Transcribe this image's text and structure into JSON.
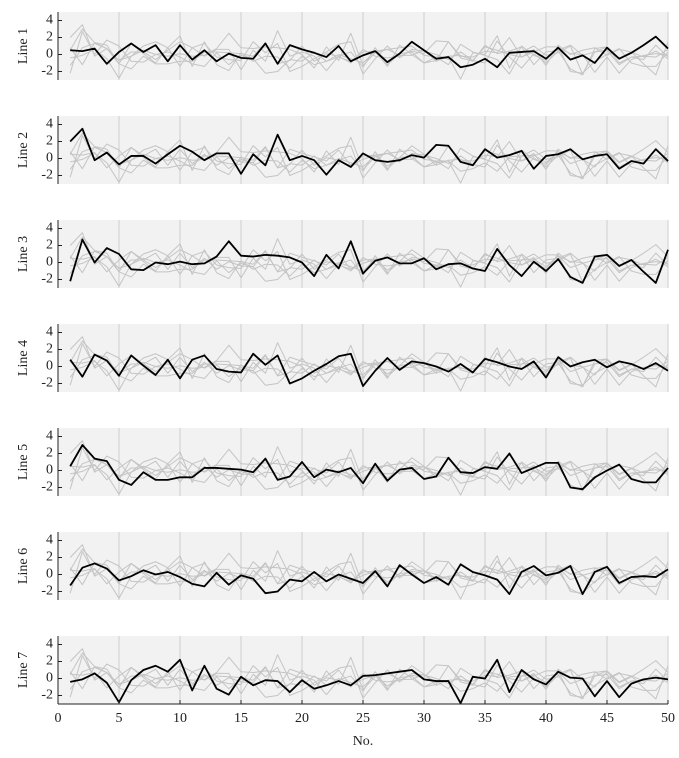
{
  "chart_data": {
    "type": "line",
    "layout": "small-multiples",
    "x_label": "No.",
    "x": [
      1,
      2,
      3,
      4,
      5,
      6,
      7,
      8,
      9,
      10,
      11,
      12,
      13,
      14,
      15,
      16,
      17,
      18,
      19,
      20,
      21,
      22,
      23,
      24,
      25,
      26,
      27,
      28,
      29,
      30,
      31,
      32,
      33,
      34,
      35,
      36,
      37,
      38,
      39,
      40,
      41,
      42,
      43,
      44,
      45,
      46,
      47,
      48,
      49,
      50
    ],
    "xlim": [
      0,
      50
    ],
    "xticks": [
      0,
      5,
      10,
      15,
      20,
      25,
      30,
      35,
      40,
      45,
      50
    ],
    "ylim": [
      -3,
      5
    ],
    "yticks": [
      -2,
      0,
      2,
      4
    ],
    "grid": true,
    "background": "#f2f2f2",
    "grid_color": "#cfcfcf",
    "context_color": "#c4c4c4",
    "series": [
      {
        "name": "Line 1",
        "color": "#000000",
        "values": [
          0.5,
          0.4,
          0.7,
          -1.1,
          0.3,
          1.3,
          0.3,
          1.1,
          -0.8,
          1.1,
          -0.6,
          0.5,
          -0.8,
          0.1,
          -0.4,
          -0.5,
          1.3,
          -1.1,
          1.1,
          0.6,
          0.2,
          -0.3,
          1.0,
          -0.8,
          -0.1,
          0.4,
          -0.9,
          0.1,
          1.5,
          0.5,
          -0.5,
          -0.3,
          -1.5,
          -1.2,
          -0.5,
          -1.5,
          0.2,
          0.3,
          0.4,
          -0.5,
          0.8,
          -0.6,
          -0.1,
          -1.0,
          0.8,
          -0.5,
          0.2,
          1.1,
          2.1,
          0.7
        ]
      },
      {
        "name": "Line 2",
        "color": "#000000",
        "values": [
          2.0,
          3.5,
          -0.2,
          0.7,
          -0.7,
          0.3,
          0.3,
          -0.6,
          0.5,
          1.5,
          0.8,
          -0.2,
          0.6,
          0.6,
          -1.8,
          0.5,
          -0.8,
          2.8,
          -0.2,
          0.3,
          -0.2,
          -1.9,
          -0.2,
          -1.0,
          0.6,
          -0.2,
          -0.4,
          -0.2,
          0.4,
          0.1,
          1.6,
          1.5,
          -0.4,
          -0.8,
          1.1,
          0.1,
          0.4,
          0.9,
          -1.2,
          0.3,
          0.5,
          1.1,
          -0.1,
          0.3,
          0.5,
          -1.2,
          -0.3,
          -0.6,
          1.1,
          -0.3
        ]
      },
      {
        "name": "Line 3",
        "color": "#000000",
        "values": [
          -2.2,
          2.7,
          0.0,
          1.7,
          1.0,
          -0.8,
          -0.9,
          0.0,
          -0.2,
          0.1,
          -0.2,
          -0.1,
          0.7,
          2.5,
          0.8,
          0.7,
          0.9,
          0.8,
          0.6,
          0.0,
          -1.6,
          0.9,
          -0.7,
          2.5,
          -1.3,
          0.2,
          0.6,
          -0.1,
          -0.1,
          0.5,
          -0.8,
          -0.2,
          -0.1,
          -0.7,
          -1.0,
          1.6,
          -0.3,
          -1.6,
          0.1,
          -1.0,
          0.4,
          -1.7,
          -2.4,
          0.7,
          0.9,
          -0.4,
          0.3,
          -1.1,
          -2.4,
          1.5
        ]
      },
      {
        "name": "Line 4",
        "color": "#000000",
        "values": [
          0.8,
          -1.2,
          1.4,
          0.7,
          -1.1,
          1.3,
          0.1,
          -1.0,
          0.8,
          -1.4,
          0.8,
          1.3,
          -0.3,
          -0.6,
          -0.7,
          1.5,
          0.2,
          1.3,
          -2.0,
          -1.4,
          -0.5,
          0.3,
          1.2,
          1.5,
          -2.3,
          -0.5,
          1.0,
          -0.4,
          0.6,
          0.4,
          0.0,
          -0.6,
          0.3,
          -0.7,
          0.9,
          0.5,
          0.0,
          -0.3,
          0.6,
          -1.3,
          1.1,
          0.0,
          0.5,
          0.8,
          -0.1,
          0.6,
          0.3,
          -0.3,
          0.4,
          -0.5
        ]
      },
      {
        "name": "Line 5",
        "color": "#000000",
        "values": [
          0.5,
          3.0,
          1.4,
          1.1,
          -1.1,
          -1.7,
          -0.2,
          -1.1,
          -1.1,
          -0.8,
          -0.8,
          0.3,
          0.3,
          0.2,
          0.1,
          -0.2,
          1.4,
          -1.1,
          -0.7,
          1.0,
          -0.8,
          0.1,
          -0.2,
          0.3,
          -1.5,
          0.8,
          -1.2,
          0.1,
          0.3,
          -1.0,
          -0.7,
          1.5,
          -0.2,
          -0.3,
          0.4,
          0.2,
          2.0,
          -0.3,
          0.3,
          0.9,
          0.9,
          -2.0,
          -2.2,
          -0.8,
          0.0,
          0.7,
          -1.0,
          -1.4,
          -1.4,
          0.3
        ]
      },
      {
        "name": "Line 6",
        "color": "#000000",
        "values": [
          -1.3,
          0.8,
          1.3,
          0.7,
          -0.7,
          -0.2,
          0.5,
          0.0,
          0.3,
          -0.3,
          -1.1,
          -1.4,
          0.2,
          -1.2,
          -0.1,
          -0.5,
          -2.2,
          -2.0,
          -0.6,
          -0.8,
          0.3,
          -0.8,
          0.0,
          -0.5,
          -1.0,
          0.4,
          -1.4,
          1.1,
          0.0,
          -1.0,
          -0.3,
          -1.2,
          1.2,
          0.3,
          -0.1,
          -0.6,
          -2.3,
          0.3,
          1.0,
          -0.1,
          0.2,
          1.0,
          -2.3,
          0.3,
          0.9,
          -1.0,
          -0.3,
          -0.2,
          -0.3,
          0.6
        ]
      },
      {
        "name": "Line 7",
        "color": "#000000",
        "values": [
          -0.4,
          -0.1,
          0.6,
          -0.5,
          -2.8,
          -0.2,
          1.0,
          1.5,
          0.8,
          2.2,
          -1.4,
          1.5,
          -1.2,
          -1.9,
          0.2,
          -0.8,
          -0.2,
          -0.3,
          -1.6,
          -0.2,
          -1.2,
          -0.8,
          -0.3,
          -0.8,
          0.3,
          0.4,
          0.6,
          0.8,
          1.0,
          -0.1,
          -0.3,
          -0.3,
          -2.9,
          0.2,
          0.0,
          2.2,
          -1.6,
          1.0,
          -0.1,
          -0.7,
          0.8,
          0.1,
          0.0,
          -2.1,
          -0.3,
          -2.2,
          -0.6,
          -0.1,
          0.1,
          -0.1
        ]
      }
    ]
  }
}
